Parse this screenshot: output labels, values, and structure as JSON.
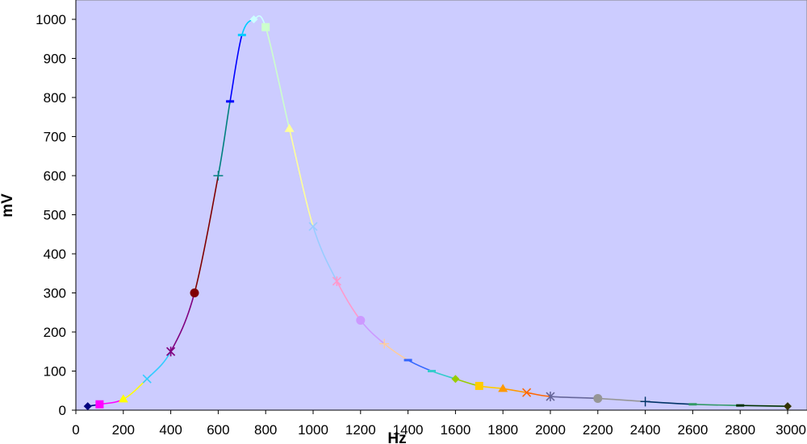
{
  "chart_data": {
    "type": "line",
    "xlabel": "Hz",
    "ylabel": "mV",
    "xlim": [
      0,
      3000
    ],
    "ylim": [
      0,
      1000
    ],
    "x_ticks": [
      0,
      200,
      400,
      600,
      800,
      1000,
      1200,
      1400,
      1600,
      1800,
      2000,
      2200,
      2400,
      2600,
      2800,
      3000
    ],
    "y_ticks": [
      0,
      100,
      200,
      300,
      400,
      500,
      600,
      700,
      800,
      900,
      1000
    ],
    "x_tick_labels": [
      "0",
      "200",
      "400",
      "600",
      "800",
      "1000",
      "1200",
      "1400",
      "1600",
      "1800",
      "2000",
      "2200",
      "2400",
      "2600",
      "2800",
      "3000"
    ],
    "y_tick_labels": [
      "0",
      "100",
      "200",
      "300",
      "400",
      "500",
      "600",
      "700",
      "800",
      "900",
      "1000"
    ],
    "grid": false,
    "legend": "none",
    "plot_background": "#ccccff",
    "points": [
      {
        "x": 50,
        "y": 10,
        "marker": "diamond",
        "color": "#000080"
      },
      {
        "x": 100,
        "y": 15,
        "marker": "square",
        "color": "#ff00ff"
      },
      {
        "x": 200,
        "y": 28,
        "marker": "triangle",
        "color": "#ffff00"
      },
      {
        "x": 300,
        "y": 80,
        "marker": "x",
        "color": "#33ccff"
      },
      {
        "x": 400,
        "y": 150,
        "marker": "star",
        "color": "#800080"
      },
      {
        "x": 500,
        "y": 300,
        "marker": "circle",
        "color": "#800000"
      },
      {
        "x": 600,
        "y": 600,
        "marker": "plus",
        "color": "#008080"
      },
      {
        "x": 650,
        "y": 790,
        "marker": "dash",
        "color": "#0000ff"
      },
      {
        "x": 700,
        "y": 960,
        "marker": "dash",
        "color": "#00ccff"
      },
      {
        "x": 750,
        "y": 1000,
        "marker": "diamond",
        "color": "#ccffff"
      },
      {
        "x": 800,
        "y": 980,
        "marker": "square",
        "color": "#ccffcc"
      },
      {
        "x": 900,
        "y": 720,
        "marker": "triangle",
        "color": "#ffff99"
      },
      {
        "x": 1000,
        "y": 470,
        "marker": "x",
        "color": "#99ccff"
      },
      {
        "x": 1100,
        "y": 330,
        "marker": "star",
        "color": "#ff99cc"
      },
      {
        "x": 1200,
        "y": 230,
        "marker": "circle",
        "color": "#cc99ff"
      },
      {
        "x": 1300,
        "y": 170,
        "marker": "plus",
        "color": "#ffcc99"
      },
      {
        "x": 1400,
        "y": 128,
        "marker": "dash",
        "color": "#3366ff"
      },
      {
        "x": 1500,
        "y": 100,
        "marker": "dash",
        "color": "#33cccc"
      },
      {
        "x": 1600,
        "y": 80,
        "marker": "diamond",
        "color": "#99cc00"
      },
      {
        "x": 1700,
        "y": 62,
        "marker": "square",
        "color": "#ffcc00"
      },
      {
        "x": 1800,
        "y": 55,
        "marker": "triangle",
        "color": "#ff9900"
      },
      {
        "x": 1900,
        "y": 45,
        "marker": "x",
        "color": "#ff6600"
      },
      {
        "x": 2000,
        "y": 35,
        "marker": "star",
        "color": "#666699"
      },
      {
        "x": 2200,
        "y": 30,
        "marker": "circle",
        "color": "#969696"
      },
      {
        "x": 2400,
        "y": 22,
        "marker": "plus",
        "color": "#003366"
      },
      {
        "x": 2600,
        "y": 15,
        "marker": "dash",
        "color": "#339966"
      },
      {
        "x": 2800,
        "y": 12,
        "marker": "dash",
        "color": "#003300"
      },
      {
        "x": 3000,
        "y": 10,
        "marker": "diamond",
        "color": "#333300"
      }
    ]
  }
}
